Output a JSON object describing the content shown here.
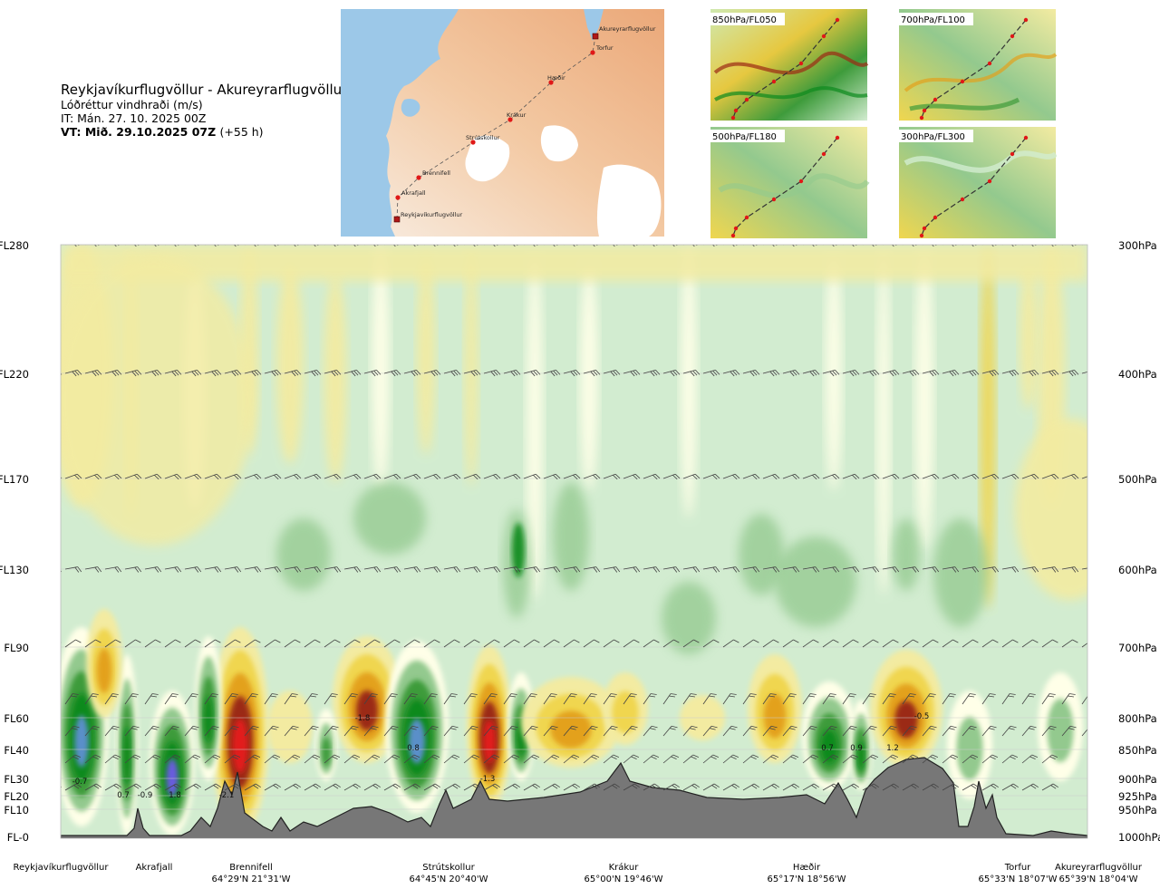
{
  "header": {
    "title": "Reykjavíkurflugvöllur - Akureyrarflugvöllur",
    "subtitle": "Lóðréttur vindhraði (m/s)",
    "issue_time": "IT: Mán. 27. 10. 2025 00Z",
    "valid_time": "VT: Mið. 29.10.2025 07Z",
    "lead_time": "(+55 h)"
  },
  "route_map": {
    "waypoints": [
      "Akureyrarflugvöllur",
      "Torfur",
      "Hæðir",
      "Krákur",
      "Strútskollur",
      "Brennifell",
      "Akrafjall",
      "Reykjavíkurflugvöllur"
    ]
  },
  "thumbnails": [
    {
      "label": "850hPa/FL050"
    },
    {
      "label": "700hPa/FL100"
    },
    {
      "label": "500hPa/FL180"
    },
    {
      "label": "300hPa/FL300"
    }
  ],
  "chart_data": {
    "type": "heatmap",
    "title": "Reykjavíkurflugvöllur - Akureyrarflugvöllur",
    "variable": "Lóðréttur vindhraði (m/s)",
    "y_left_levels": [
      "FL280",
      "FL220",
      "FL170",
      "FL130",
      "FL90",
      "FL60",
      "FL40",
      "FL30",
      "FL20",
      "FL10",
      "FL-0"
    ],
    "y_right_levels": [
      "300hPa",
      "400hPa",
      "500hPa",
      "600hPa",
      "700hPa",
      "800hPa",
      "850hPa",
      "900hPa",
      "925hPa",
      "950hPa",
      "1000hPa"
    ],
    "x_stations": [
      {
        "name": "Reykjavíkurflugvöllur",
        "coord": ""
      },
      {
        "name": "Akrafjall",
        "coord": ""
      },
      {
        "name": "Brennifell",
        "coord": "64°29'N 21°31'W"
      },
      {
        "name": "Strútskollur",
        "coord": "64°45'N 20°40'W"
      },
      {
        "name": "Krákur",
        "coord": "65°00'N 19°46'W"
      },
      {
        "name": "Hæðir",
        "coord": "65°17'N 18°56'W"
      },
      {
        "name": "Torfur",
        "coord": "65°33'N 18°07'W"
      },
      {
        "name": "Akureyrarflugvöllur",
        "coord": "65°39'N 18°04'W"
      }
    ],
    "contour_labels": [
      "-0.7",
      "0.7",
      "-0.9",
      "1.8",
      "-2.1",
      "-1.8",
      "0.8",
      "-1.3",
      "0.7",
      "0.9",
      "1.2",
      "-0.5"
    ],
    "colors": {
      "updraft_light": "#f3eba1",
      "updraft_yellow": "#f0d64f",
      "updraft_orange": "#e3a11c",
      "updraft_brown": "#9b2a14",
      "updraft_red": "#e21b1b",
      "downdraft_pale": "#ffffe8",
      "downdraft_light": "#d2ecd0",
      "downdraft_mid": "#93c98e",
      "downdraft_green": "#3e9b3b",
      "downdraft_dark": "#0d8a1e",
      "downdraft_blue": "#5a8fc9",
      "downdraft_purple": "#6a5be0",
      "terrain": "#777777"
    }
  }
}
